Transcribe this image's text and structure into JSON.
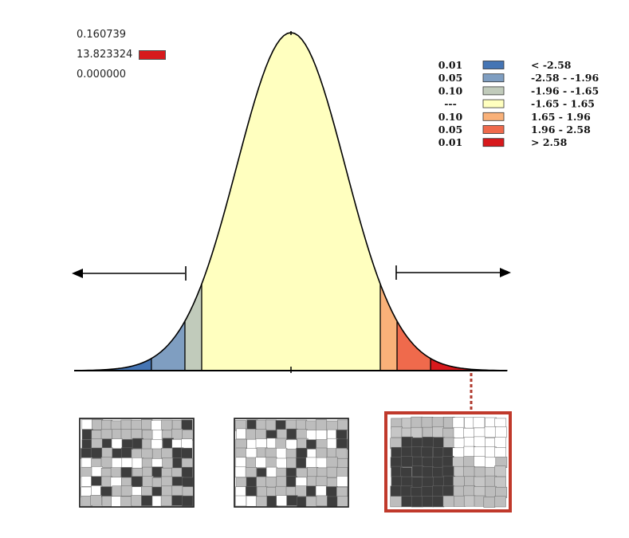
{
  "readouts": {
    "value_top": "0.160739",
    "value_mid": "13.823324",
    "value_mid_color": "#d7191c",
    "value_bottom": "0.000000"
  },
  "legend": {
    "items": [
      {
        "p": "0.01",
        "range": "< -2.58",
        "color": "#4575b4"
      },
      {
        "p": "0.05",
        "range": "-2.58 - -1.96",
        "color": "#7f9ec1"
      },
      {
        "p": "0.10",
        "range": "-1.96 - -1.65",
        "color": "#c1cbbb"
      },
      {
        "p": "---",
        "range": "-1.65 - 1.65",
        "color": "#ffffbf"
      },
      {
        "p": "0.10",
        "range": "1.65 - 1.96",
        "color": "#f9b179"
      },
      {
        "p": "0.05",
        "range": "1.96 - 2.58",
        "color": "#ef6a4c"
      },
      {
        "p": "0.01",
        "range": "> 2.58",
        "color": "#d7191c"
      }
    ]
  },
  "curve": {
    "z_min": -4,
    "z_max": 4,
    "breaks": [
      -2.58,
      -1.96,
      -1.65,
      1.65,
      1.96,
      2.58
    ]
  },
  "maps": {
    "dark_color": "#3d3d3d",
    "mid_color": "#bdbdbd",
    "light_color": "#ffffff",
    "highlight_border": "#c0392b"
  }
}
